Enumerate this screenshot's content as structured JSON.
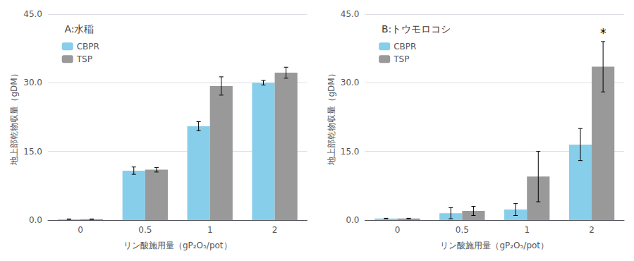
{
  "chart_data": [
    {
      "type": "bar",
      "title": "A:水稲",
      "categories": [
        "0",
        "0.5",
        "1",
        "2"
      ],
      "series": [
        {
          "name": "CBPR",
          "color": "#87CEEB",
          "values": [
            0.2,
            10.8,
            20.5,
            30.0
          ],
          "errors": [
            0.05,
            0.8,
            1.0,
            0.5
          ]
        },
        {
          "name": "TSP",
          "color": "#999999",
          "values": [
            0.2,
            11.0,
            29.3,
            32.2
          ],
          "errors": [
            0.05,
            0.5,
            2.0,
            1.2
          ]
        }
      ],
      "xlabel": "リン酸施用量（gP₂O₅/pot）",
      "ylabel": "地上部乾物収量（gDM）",
      "ylim": [
        0,
        45
      ],
      "yticks": [
        {
          "value": 0,
          "label": "0.0"
        },
        {
          "value": 15,
          "label": "15.0"
        },
        {
          "value": 30,
          "label": "30.0"
        },
        {
          "value": 45,
          "label": "45.0"
        }
      ],
      "grid": true,
      "legend": "upper left"
    },
    {
      "type": "bar",
      "title": "B:トウモロコシ",
      "categories": [
        "0",
        "0.5",
        "1",
        "2"
      ],
      "series": [
        {
          "name": "CBPR",
          "color": "#87CEEB",
          "values": [
            0.35,
            1.5,
            2.3,
            16.5
          ],
          "errors": [
            0.05,
            1.2,
            1.3,
            3.5
          ]
        },
        {
          "name": "TSP",
          "color": "#999999",
          "values": [
            0.35,
            2.0,
            9.5,
            33.5
          ],
          "errors": [
            0.05,
            1.0,
            5.5,
            5.5
          ]
        }
      ],
      "xlabel": "リン酸施用量（gP₂O₅/pot）",
      "ylabel": "地上部乾物収量（gDM）",
      "ylim": [
        0,
        45
      ],
      "yticks": [
        {
          "value": 0,
          "label": "0.0"
        },
        {
          "value": 15,
          "label": "15.0"
        },
        {
          "value": 30,
          "label": "30.0"
        },
        {
          "value": 45,
          "label": "45.0"
        }
      ],
      "grid": true,
      "legend": "upper left",
      "annotations": [
        {
          "text": "*",
          "category": "2",
          "series": "TSP"
        }
      ]
    }
  ]
}
